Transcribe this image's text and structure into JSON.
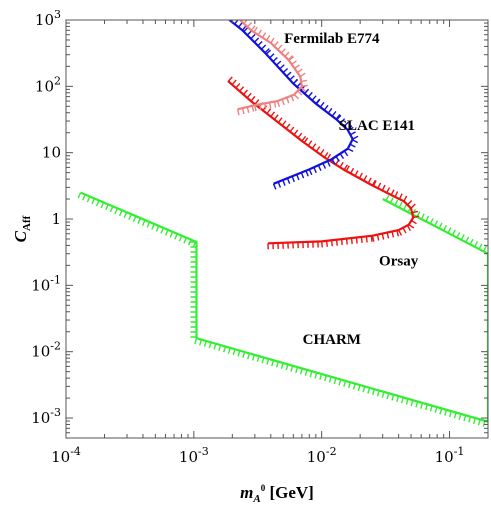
{
  "chart_data": {
    "type": "line",
    "title": "",
    "xlabel": {
      "main": "m",
      "sub": "A",
      "sup": "0",
      "rest": " [GeV]"
    },
    "ylabel": {
      "main": "C",
      "sub": "Aff"
    },
    "x_scale": "log",
    "y_scale": "log",
    "xlim": [
      0.0001,
      0.2
    ],
    "ylim": [
      0.0005,
      1000
    ],
    "grid": false,
    "x_ticks": [
      {
        "value": 0.0001,
        "base": "10",
        "exp": "-4"
      },
      {
        "value": 0.001,
        "base": "10",
        "exp": "-3"
      },
      {
        "value": 0.01,
        "base": "10",
        "exp": "-2"
      },
      {
        "value": 0.1,
        "base": "10",
        "exp": "-1"
      }
    ],
    "y_ticks": [
      {
        "value": 0.001,
        "base": "10",
        "exp": "-3"
      },
      {
        "value": 0.01,
        "base": "10",
        "exp": "-2"
      },
      {
        "value": 0.1,
        "base": "10",
        "exp": "-1"
      },
      {
        "value": 1,
        "base": "1",
        "exp": ""
      },
      {
        "value": 10,
        "base": "10",
        "exp": ""
      },
      {
        "value": 100,
        "base": "10",
        "exp": "2"
      },
      {
        "value": 1000,
        "base": "10",
        "exp": "3"
      }
    ],
    "series": [
      {
        "name": "CHARM",
        "color": "#33ee33",
        "points": [
          [
            0.00013,
            2.5
          ],
          [
            0.00105,
            0.45
          ],
          [
            0.00105,
            0.016
          ],
          [
            0.2,
            0.00088
          ],
          [
            0.2,
            0.3
          ],
          [
            0.03,
            2.0
          ]
        ],
        "label_at": [
          0.012,
          0.013
        ]
      },
      {
        "name": "Orsay",
        "color": "#ee1111",
        "points": [
          [
            0.0038,
            0.43
          ],
          [
            0.01,
            0.46
          ],
          [
            0.025,
            0.56
          ],
          [
            0.04,
            0.68
          ],
          [
            0.048,
            0.82
          ],
          [
            0.052,
            1.05
          ],
          [
            0.05,
            1.45
          ],
          [
            0.044,
            1.85
          ],
          [
            0.035,
            2.3
          ],
          [
            0.025,
            3.2
          ],
          [
            0.015,
            5.5
          ],
          [
            0.0105,
            8.5
          ],
          [
            0.007,
            15
          ],
          [
            0.004,
            35
          ],
          [
            0.0028,
            60
          ],
          [
            0.00185,
            120
          ]
        ],
        "label_at": [
          0.04,
          0.2
        ]
      },
      {
        "name": "SLAC E141",
        "color": "#1111dd",
        "points": [
          [
            0.0042,
            3.4
          ],
          [
            0.008,
            5.6
          ],
          [
            0.012,
            8.0
          ],
          [
            0.016,
            11.5
          ],
          [
            0.0175,
            16
          ],
          [
            0.016,
            22
          ],
          [
            0.013,
            32
          ],
          [
            0.009,
            55
          ],
          [
            0.006,
            110
          ],
          [
            0.0036,
            320
          ],
          [
            0.0024,
            700
          ],
          [
            0.0019,
            1000
          ]
        ],
        "label_at": [
          0.027,
          22
        ]
      },
      {
        "name": "Fermilab E774",
        "color": "#f08080",
        "points": [
          [
            0.0022,
            45
          ],
          [
            0.003,
            52
          ],
          [
            0.0045,
            60
          ],
          [
            0.0061,
            75
          ],
          [
            0.007,
            100
          ],
          [
            0.0068,
            140
          ],
          [
            0.0055,
            250
          ],
          [
            0.004,
            450
          ],
          [
            0.0028,
            700
          ],
          [
            0.0023,
            1000
          ]
        ],
        "label_at": [
          0.012,
          450
        ]
      }
    ]
  }
}
